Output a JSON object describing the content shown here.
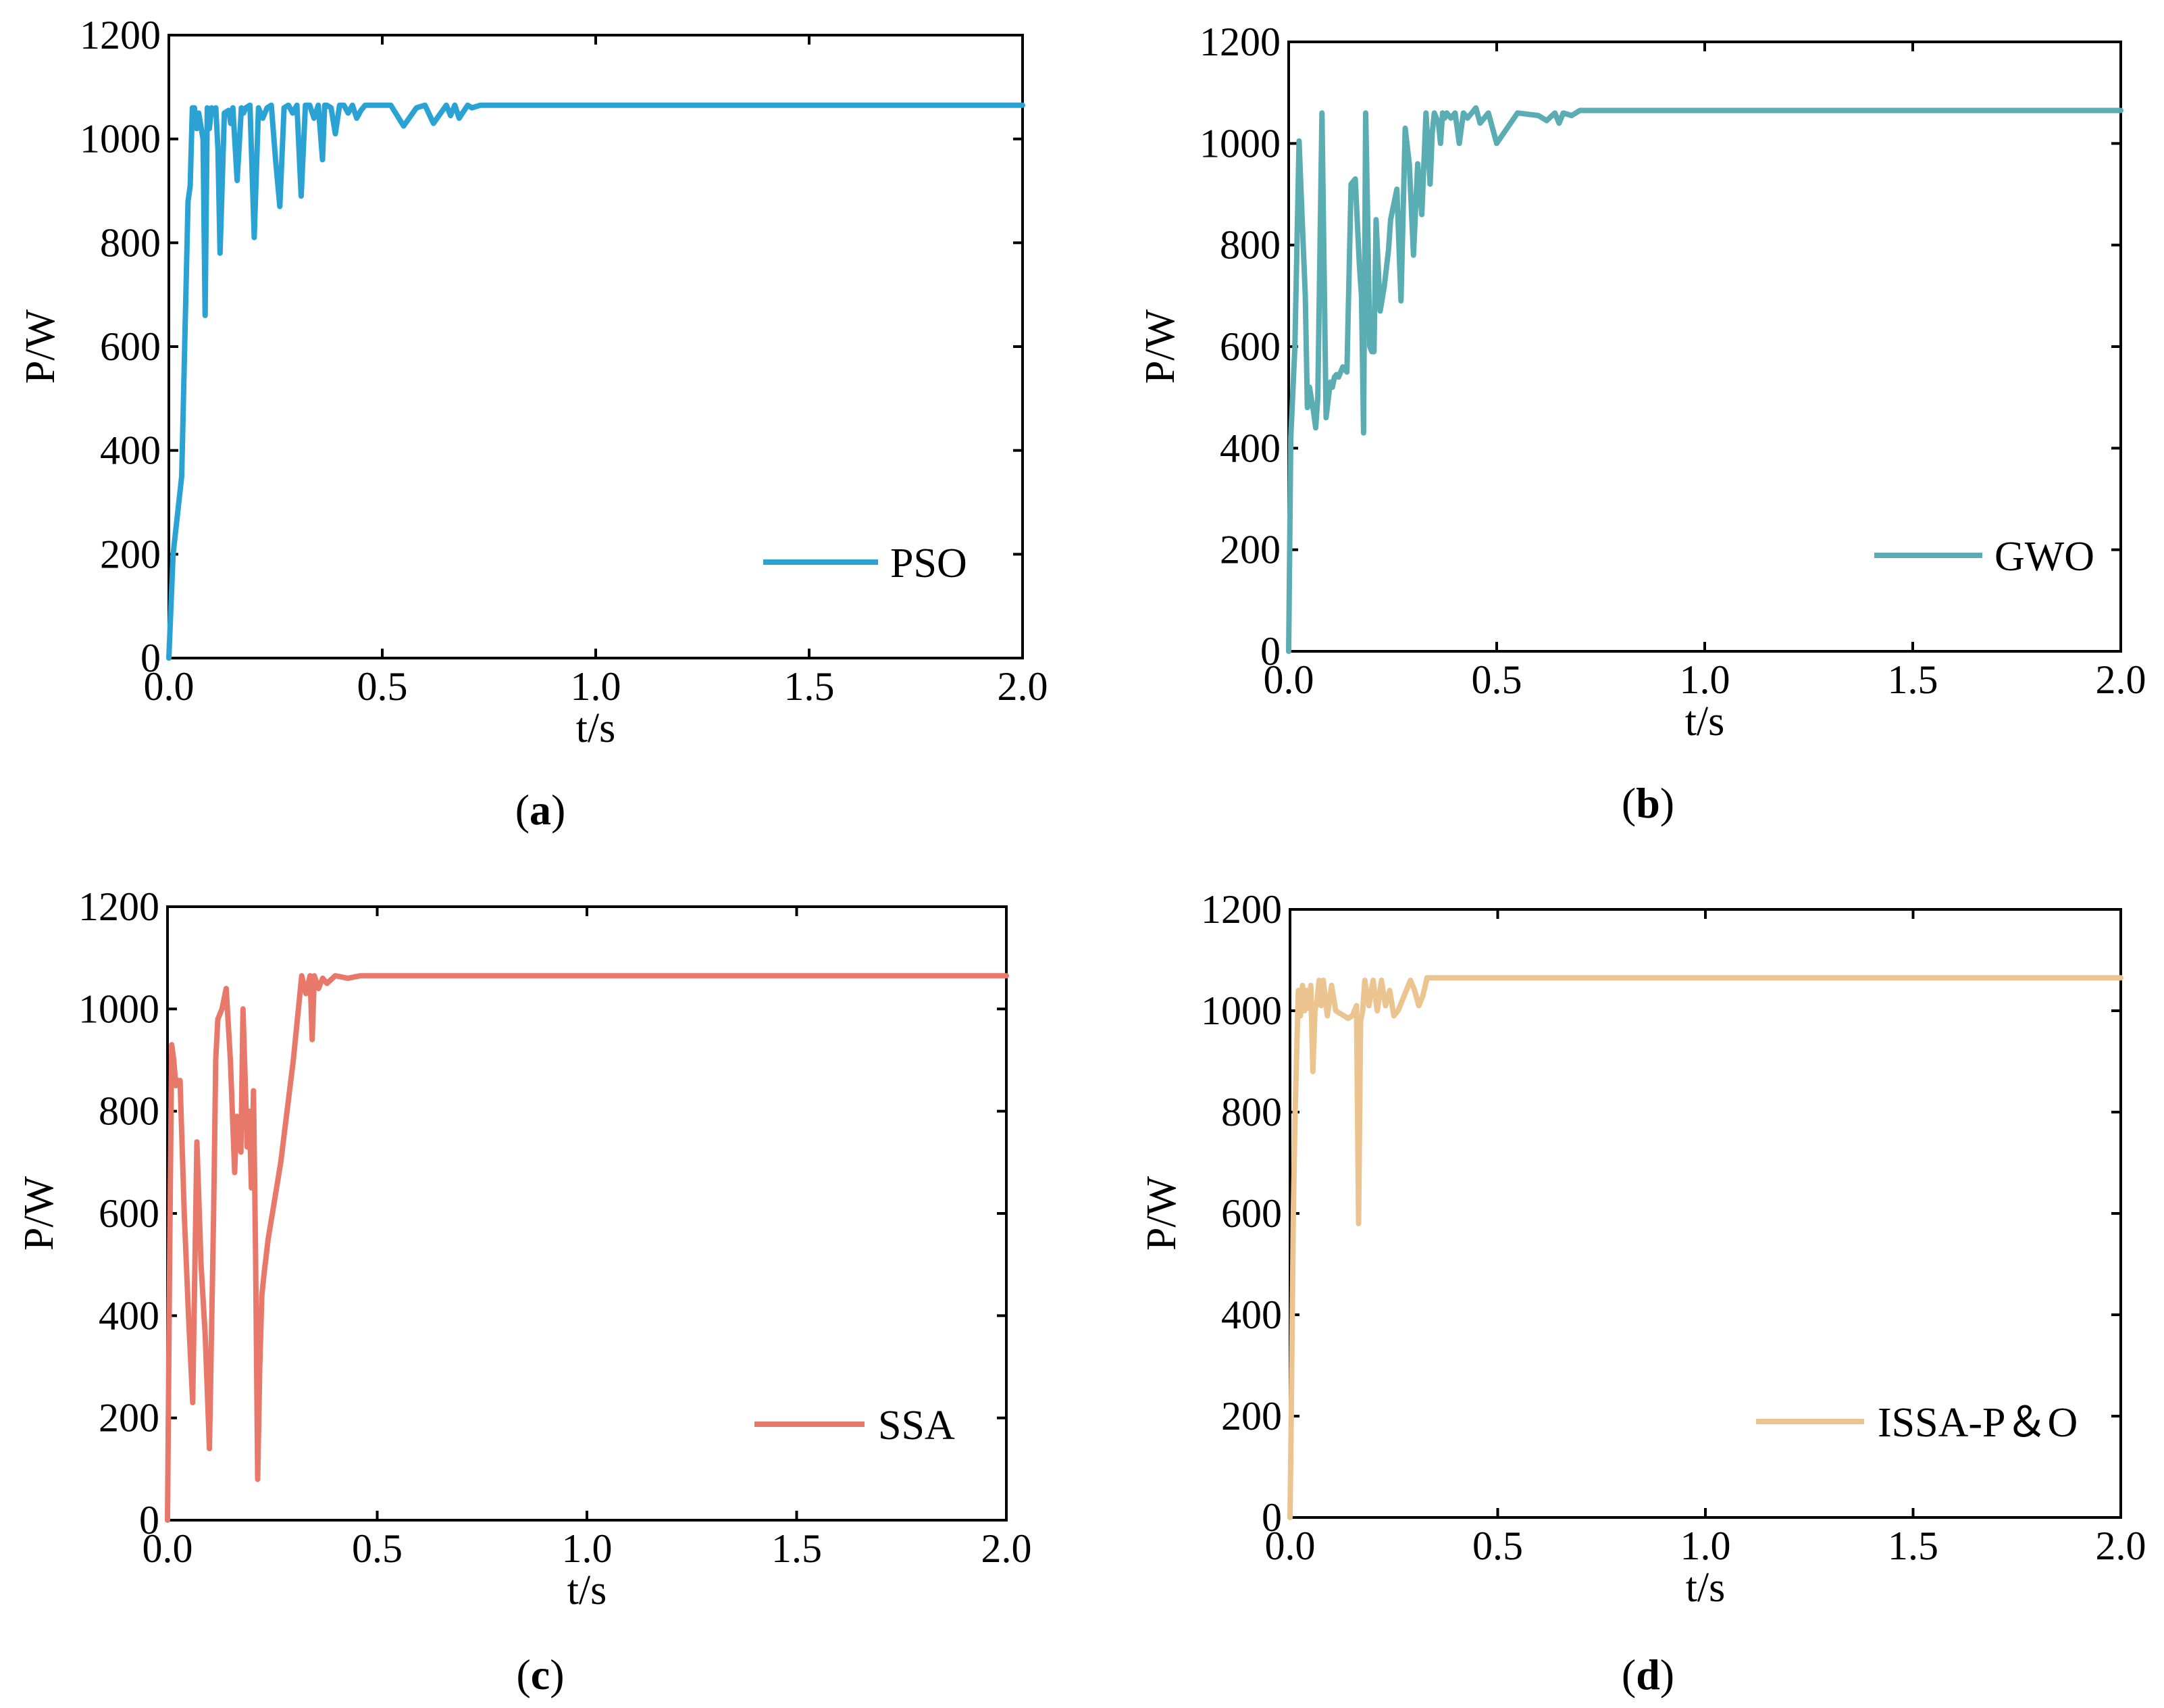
{
  "chart_data": [
    {
      "type": "line",
      "panel_label": "a",
      "xlabel": "t/s",
      "ylabel": "P/W",
      "xlim": [
        0,
        2.0
      ],
      "ylim": [
        0,
        1200
      ],
      "xticks": [
        "0.0",
        "0.5",
        "1.0",
        "1.5",
        "2.0"
      ],
      "yticks": [
        "0",
        "200",
        "400",
        "600",
        "800",
        "1000",
        "1200"
      ],
      "legend_position": "lower-right",
      "series": [
        {
          "name": "PSO",
          "color": "#2aa3d4",
          "x": [
            0,
            0.01,
            0.03,
            0.045,
            0.05,
            0.055,
            0.06,
            0.065,
            0.07,
            0.08,
            0.085,
            0.09,
            0.095,
            0.1,
            0.105,
            0.11,
            0.115,
            0.12,
            0.13,
            0.14,
            0.145,
            0.15,
            0.16,
            0.17,
            0.175,
            0.18,
            0.19,
            0.2,
            0.21,
            0.22,
            0.225,
            0.23,
            0.24,
            0.25,
            0.26,
            0.27,
            0.28,
            0.29,
            0.3,
            0.31,
            0.32,
            0.33,
            0.34,
            0.35,
            0.36,
            0.365,
            0.37,
            0.38,
            0.39,
            0.4,
            0.41,
            0.42,
            0.43,
            0.44,
            0.45,
            0.46,
            0.47,
            0.48,
            0.5,
            0.52,
            0.55,
            0.58,
            0.6,
            0.62,
            0.65,
            0.66,
            0.67,
            0.68,
            0.7,
            0.71,
            0.73,
            0.75,
            0.8,
            1.0,
            1.5,
            2.0
          ],
          "values": [
            0,
            200,
            350,
            880,
            910,
            1060,
            1060,
            1020,
            1050,
            1000,
            660,
            1060,
            1020,
            1060,
            1050,
            1060,
            980,
            780,
            1050,
            1055,
            1030,
            1060,
            920,
            1060,
            1050,
            1060,
            1065,
            810,
            1060,
            1040,
            1050,
            1060,
            1065,
            960,
            870,
            1060,
            1065,
            1050,
            1065,
            890,
            1065,
            1065,
            1040,
            1065,
            960,
            1065,
            1065,
            1060,
            1010,
            1065,
            1065,
            1050,
            1065,
            1040,
            1055,
            1065,
            1065,
            1065,
            1065,
            1065,
            1025,
            1060,
            1065,
            1030,
            1065,
            1045,
            1065,
            1040,
            1065,
            1060,
            1065,
            1065,
            1065,
            1065,
            1065,
            1065
          ]
        }
      ]
    },
    {
      "type": "line",
      "panel_label": "b",
      "xlabel": "t/s",
      "ylabel": "P/W",
      "xlim": [
        0,
        2.0
      ],
      "ylim": [
        0,
        1200
      ],
      "xticks": [
        "0.0",
        "0.5",
        "1.0",
        "1.5",
        "2.0"
      ],
      "yticks": [
        "0",
        "200",
        "400",
        "600",
        "800",
        "1000",
        "1200"
      ],
      "legend_position": "lower-right",
      "series": [
        {
          "name": "GWO",
          "color": "#5aadb2",
          "x": [
            0,
            0.005,
            0.015,
            0.025,
            0.03,
            0.04,
            0.045,
            0.05,
            0.06,
            0.065,
            0.07,
            0.08,
            0.09,
            0.1,
            0.105,
            0.11,
            0.115,
            0.12,
            0.13,
            0.14,
            0.15,
            0.16,
            0.17,
            0.175,
            0.18,
            0.185,
            0.19,
            0.195,
            0.2,
            0.205,
            0.21,
            0.22,
            0.23,
            0.24,
            0.245,
            0.25,
            0.26,
            0.27,
            0.28,
            0.29,
            0.3,
            0.31,
            0.32,
            0.33,
            0.34,
            0.345,
            0.35,
            0.36,
            0.365,
            0.37,
            0.375,
            0.38,
            0.39,
            0.4,
            0.41,
            0.42,
            0.43,
            0.44,
            0.45,
            0.46,
            0.47,
            0.48,
            0.5,
            0.55,
            0.6,
            0.62,
            0.64,
            0.65,
            0.66,
            0.68,
            0.7,
            0.75,
            0.8,
            1.0,
            1.5,
            2.0
          ],
          "values": [
            0,
            420,
            600,
            1005,
            900,
            700,
            480,
            520,
            470,
            440,
            500,
            1060,
            460,
            530,
            520,
            540,
            545,
            540,
            560,
            550,
            920,
            930,
            760,
            700,
            430,
            1060,
            850,
            600,
            590,
            590,
            850,
            670,
            720,
            790,
            850,
            870,
            910,
            690,
            1030,
            960,
            780,
            960,
            860,
            1060,
            920,
            1020,
            1060,
            1040,
            1000,
            1060,
            1050,
            1060,
            1050,
            1060,
            1000,
            1060,
            1050,
            1060,
            1070,
            1040,
            1050,
            1060,
            1000,
            1060,
            1055,
            1045,
            1060,
            1040,
            1060,
            1055,
            1065,
            1065,
            1065,
            1065,
            1065,
            1065
          ]
        }
      ]
    },
    {
      "type": "line",
      "panel_label": "c",
      "xlabel": "t/s",
      "ylabel": "P/W",
      "xlim": [
        0,
        2.0
      ],
      "ylim": [
        0,
        1200
      ],
      "xticks": [
        "0.0",
        "0.5",
        "1.0",
        "1.5",
        "2.0"
      ],
      "yticks": [
        "0",
        "200",
        "400",
        "600",
        "800",
        "1000",
        "1200"
      ],
      "legend_position": "lower-right",
      "series": [
        {
          "name": "SSA",
          "color": "#e8786a",
          "x": [
            0,
            0.005,
            0.01,
            0.015,
            0.02,
            0.025,
            0.03,
            0.04,
            0.05,
            0.06,
            0.07,
            0.08,
            0.09,
            0.1,
            0.11,
            0.115,
            0.12,
            0.13,
            0.14,
            0.15,
            0.16,
            0.165,
            0.17,
            0.175,
            0.18,
            0.19,
            0.195,
            0.2,
            0.205,
            0.21,
            0.215,
            0.22,
            0.225,
            0.23,
            0.24,
            0.25,
            0.27,
            0.3,
            0.32,
            0.33,
            0.34,
            0.345,
            0.35,
            0.36,
            0.37,
            0.38,
            0.4,
            0.43,
            0.46,
            0.5,
            0.6,
            1.0,
            1.5,
            2.0
          ],
          "values": [
            0,
            500,
            930,
            900,
            850,
            860,
            860,
            600,
            400,
            230,
            740,
            500,
            360,
            140,
            600,
            900,
            980,
            1000,
            1040,
            900,
            680,
            790,
            760,
            720,
            1000,
            730,
            800,
            650,
            840,
            520,
            80,
            300,
            440,
            480,
            550,
            600,
            700,
            900,
            1065,
            1030,
            1065,
            940,
            1065,
            1040,
            1060,
            1050,
            1065,
            1060,
            1065,
            1065,
            1065,
            1065,
            1065,
            1065
          ]
        }
      ]
    },
    {
      "type": "line",
      "panel_label": "d",
      "xlabel": "t/s",
      "ylabel": "P/W",
      "xlim": [
        0,
        2.0
      ],
      "ylim": [
        0,
        1200
      ],
      "xticks": [
        "0.0",
        "0.5",
        "1.0",
        "1.5",
        "2.0"
      ],
      "yticks": [
        "0",
        "200",
        "400",
        "600",
        "800",
        "1000",
        "1200"
      ],
      "legend_position": "lower-right",
      "series": [
        {
          "name": "ISSA-P＆O",
          "color": "#ecc490",
          "x": [
            0,
            0.003,
            0.008,
            0.012,
            0.02,
            0.025,
            0.03,
            0.035,
            0.04,
            0.045,
            0.05,
            0.055,
            0.06,
            0.065,
            0.07,
            0.075,
            0.08,
            0.09,
            0.1,
            0.11,
            0.12,
            0.13,
            0.14,
            0.15,
            0.16,
            0.165,
            0.17,
            0.175,
            0.18,
            0.19,
            0.2,
            0.21,
            0.22,
            0.23,
            0.24,
            0.25,
            0.26,
            0.27,
            0.28,
            0.29,
            0.3,
            0.31,
            0.32,
            0.33,
            0.4,
            0.6,
            1.0,
            1.5,
            2.0
          ],
          "values": [
            0,
            200,
            600,
            790,
            1040,
            990,
            1050,
            1000,
            1040,
            1005,
            1050,
            880,
            1000,
            1020,
            1060,
            1010,
            1060,
            990,
            1050,
            1000,
            995,
            990,
            985,
            990,
            1010,
            580,
            980,
            1000,
            1060,
            1010,
            1060,
            1000,
            1060,
            1010,
            1040,
            990,
            1000,
            1020,
            1040,
            1060,
            1040,
            1010,
            1030,
            1065,
            1065,
            1065,
            1065,
            1065,
            1065
          ]
        }
      ]
    }
  ]
}
